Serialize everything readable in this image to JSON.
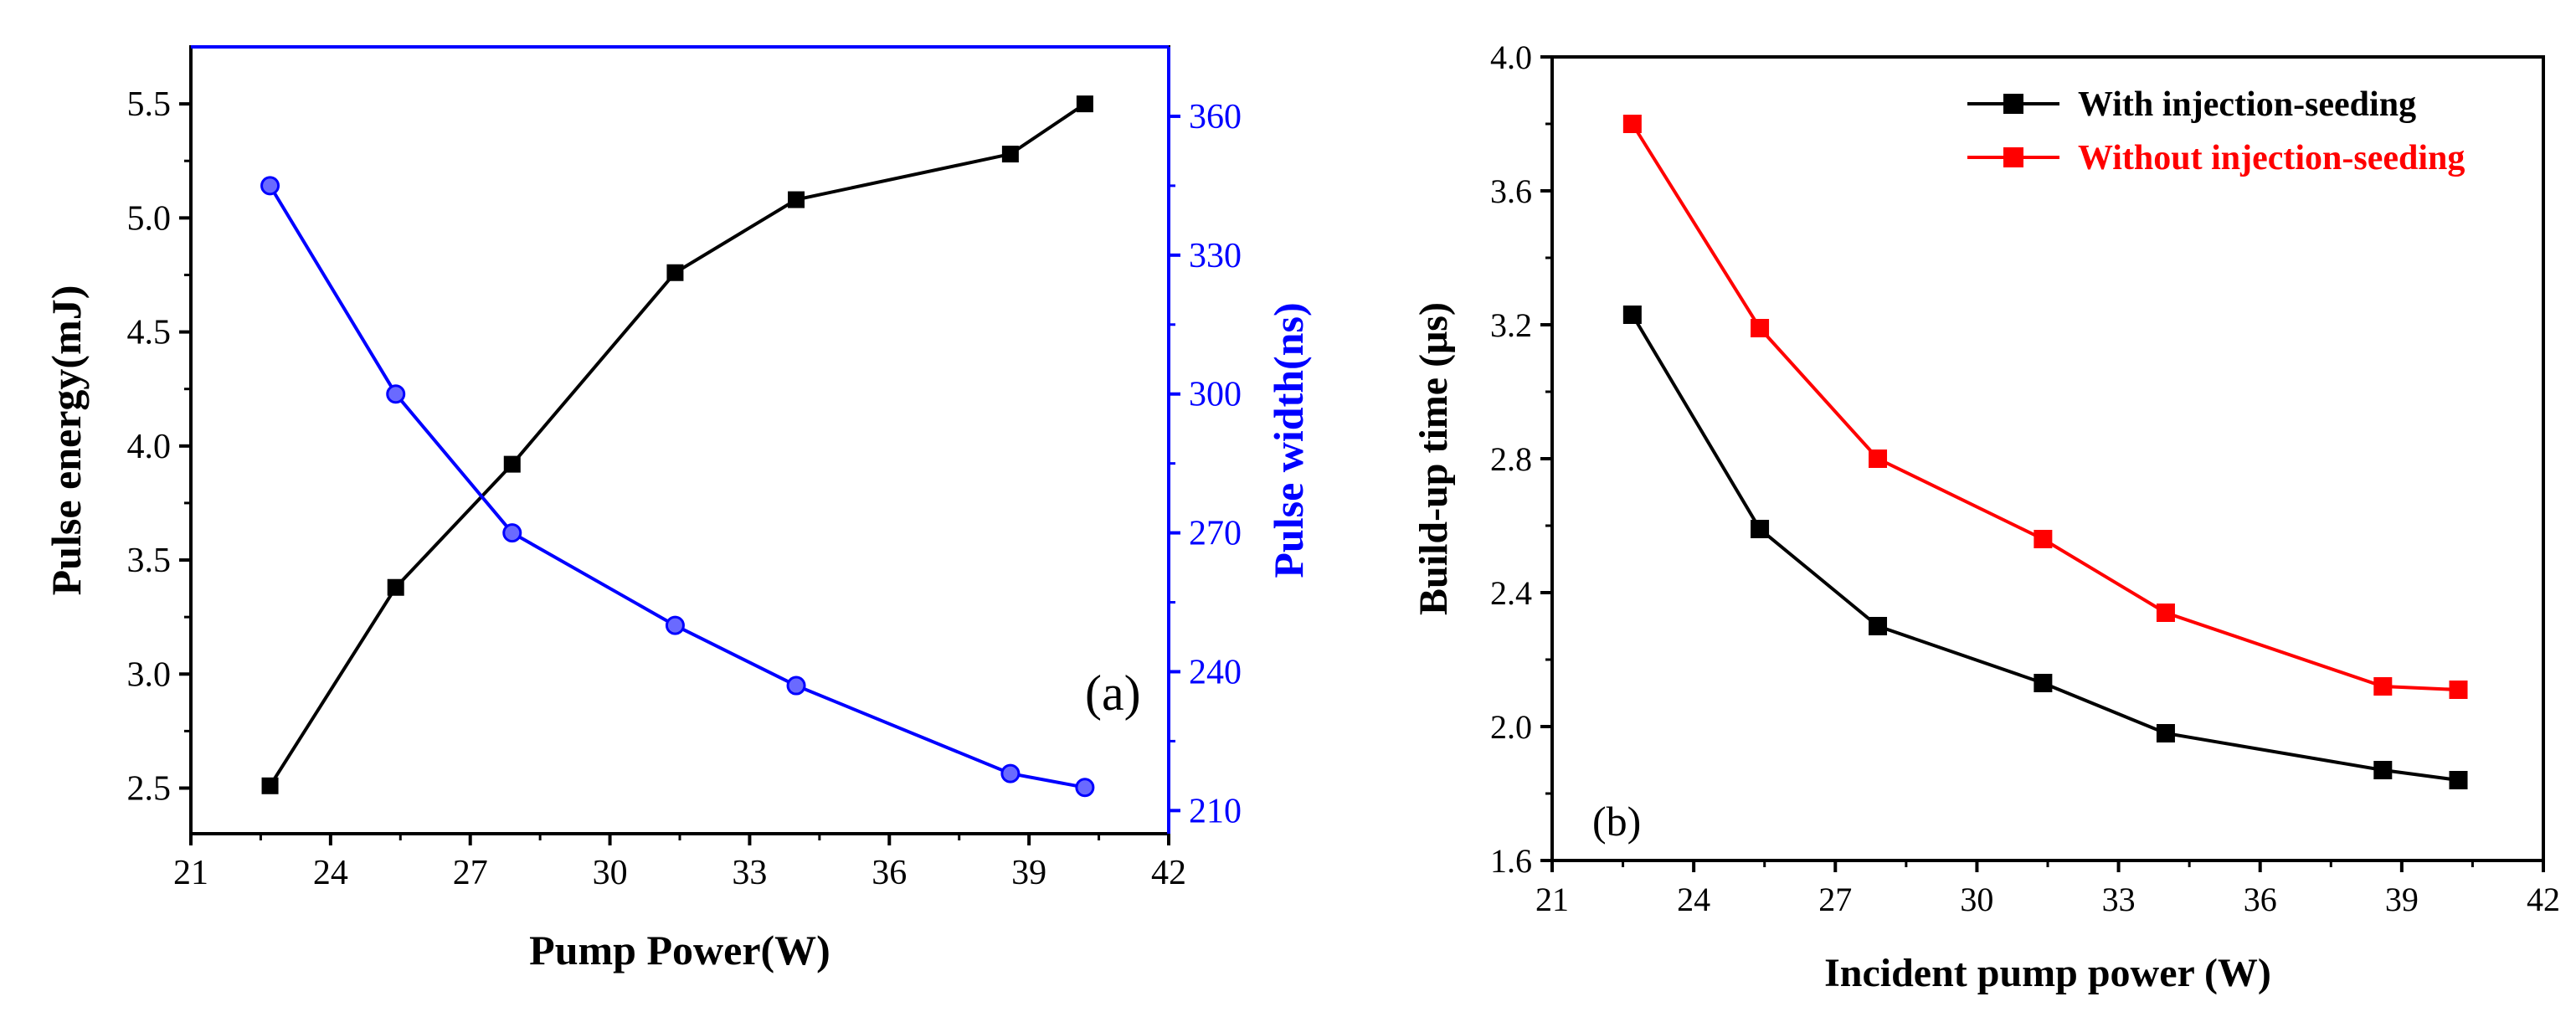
{
  "chart_data": [
    {
      "type": "line",
      "panel_label": "(a)",
      "title": "",
      "xlabel": "Pump Power(W)",
      "ylabel_left": "Pulse energy(mJ)",
      "ylabel_right": "Pulse width(ns)",
      "xlim": [
        21,
        42
      ],
      "ylim_left": [
        2.3,
        5.75
      ],
      "ylim_right": [
        205,
        375
      ],
      "x_ticks": [
        "21",
        "24",
        "27",
        "30",
        "33",
        "36",
        "39",
        "42"
      ],
      "y_ticks_left": [
        "2.5",
        "3.0",
        "3.5",
        "4.0",
        "4.5",
        "5.0",
        "5.5"
      ],
      "y_ticks_right": [
        "210",
        "240",
        "270",
        "300",
        "330",
        "360"
      ],
      "grid": false,
      "colors": {
        "left_axis": "#000000",
        "right_axis": "#0000ff",
        "series_energy": "#000000",
        "series_width": "#0000ff"
      },
      "series": [
        {
          "axis": "left",
          "marker": "square",
          "x": [
            22.7,
            25.4,
            27.9,
            31.4,
            34.0,
            38.6,
            40.2
          ],
          "y": [
            2.51,
            3.38,
            3.92,
            4.76,
            5.08,
            5.28,
            5.5
          ]
        },
        {
          "axis": "right",
          "marker": "circle",
          "x": [
            22.7,
            25.4,
            27.9,
            31.4,
            34.0,
            38.6,
            40.2
          ],
          "y": [
            345,
            300,
            270,
            250,
            237,
            218,
            215
          ]
        }
      ]
    },
    {
      "type": "line",
      "panel_label": "(b)",
      "title": "",
      "xlabel": "Incident pump power (W)",
      "ylabel": "Build-up time (μs)",
      "xlim": [
        21,
        42
      ],
      "ylim": [
        1.6,
        4.0
      ],
      "x_ticks": [
        "21",
        "24",
        "27",
        "30",
        "33",
        "36",
        "39",
        "42"
      ],
      "y_ticks": [
        "1.6",
        "2.0",
        "2.4",
        "2.8",
        "3.2",
        "3.6",
        "4.0"
      ],
      "grid": false,
      "legend_position": "top-right",
      "series": [
        {
          "name": "With injection-seeding",
          "color": "#000000",
          "marker": "square",
          "x": [
            22.7,
            25.4,
            27.9,
            31.4,
            34.0,
            38.6,
            40.2
          ],
          "y": [
            3.23,
            2.59,
            2.3,
            2.13,
            1.98,
            1.87,
            1.84
          ]
        },
        {
          "name": "Without injection-seeding",
          "color": "#ff0000",
          "marker": "square",
          "x": [
            22.7,
            25.4,
            27.9,
            31.4,
            34.0,
            38.6,
            40.2
          ],
          "y": [
            3.8,
            3.19,
            2.8,
            2.56,
            2.34,
            2.12,
            2.11
          ]
        }
      ]
    }
  ]
}
